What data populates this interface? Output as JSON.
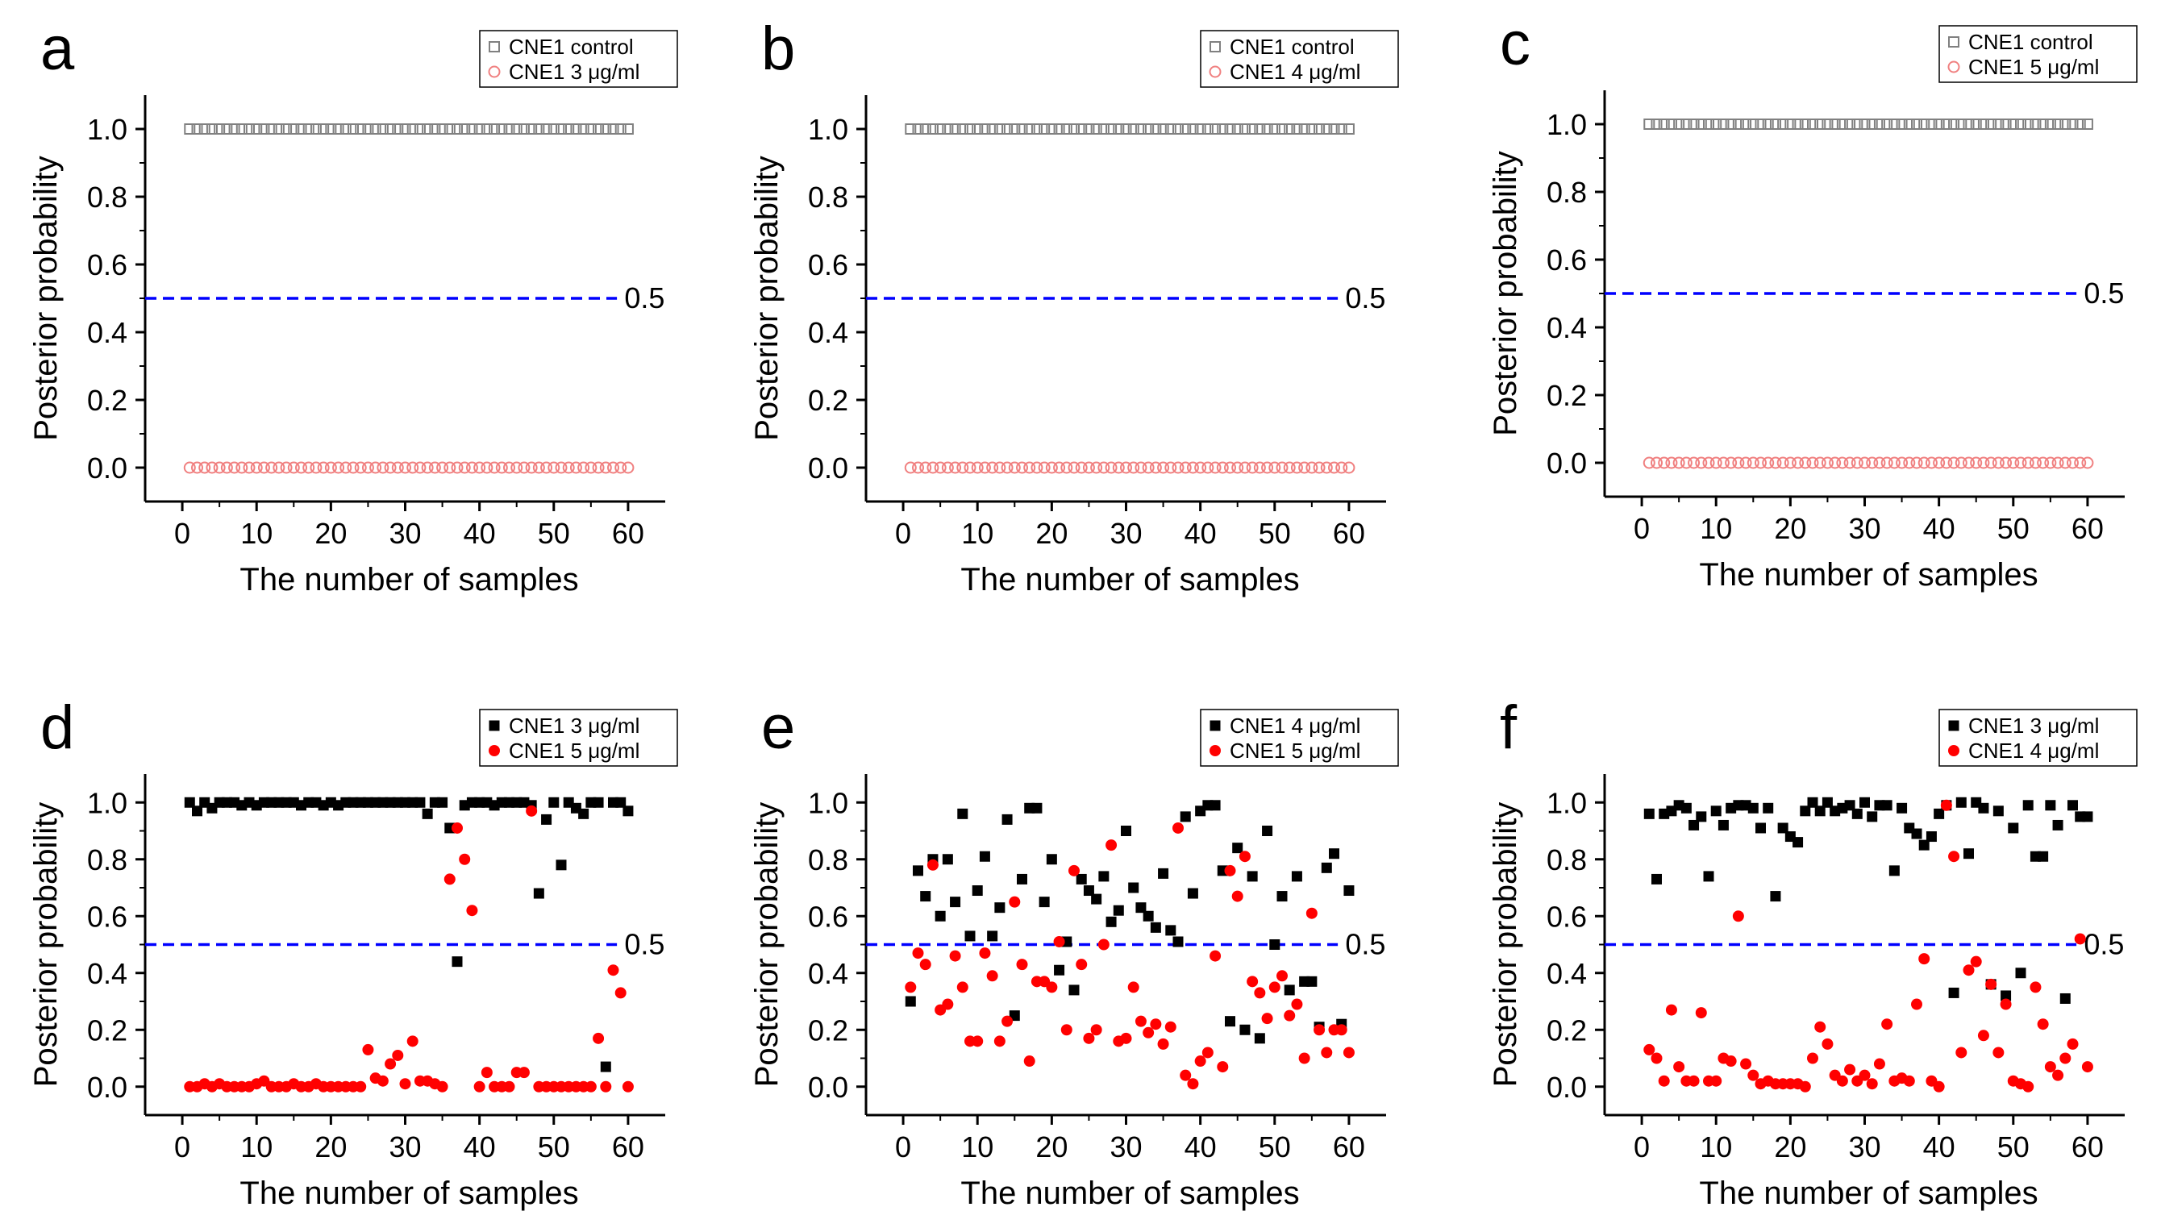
{
  "colors": {
    "control": "#808080",
    "treated_open": "#f08080",
    "black": "#000000",
    "red": "#ff0000",
    "threshold": "#0000ff"
  },
  "chart_data": [
    {
      "panel": "a",
      "type": "scatter",
      "xlabel": "The number of samples",
      "ylabel": "Posterior probability",
      "xlim": [
        -5,
        65
      ],
      "ylim": [
        -0.1,
        1.1
      ],
      "xticks": [
        0,
        10,
        20,
        30,
        40,
        50,
        60
      ],
      "xtick_labels": [
        "0",
        "10",
        "20",
        "30",
        "40",
        "50",
        "60"
      ],
      "yticks": [
        0,
        0.2,
        0.4,
        0.6,
        0.8,
        1.0
      ],
      "ytick_labels": [
        "0.0",
        "0.2",
        "0.4",
        "0.6",
        "0.8",
        "1.0"
      ],
      "threshold": 0.5,
      "threshold_label": "0.5",
      "legend_position": "top-right",
      "series": [
        {
          "name": "CNE1 control",
          "marker": "open-square",
          "color": "#808080",
          "x_start": 1,
          "x_end": 60,
          "constant_y": 1.0
        },
        {
          "name": "CNE1 3 μg/ml",
          "marker": "open-circle",
          "color": "#f08080",
          "x_start": 1,
          "x_end": 60,
          "constant_y": 0.0
        }
      ]
    },
    {
      "panel": "b",
      "type": "scatter",
      "xlabel": "The number of samples",
      "ylabel": "Posterior probability",
      "xlim": [
        -5,
        65
      ],
      "ylim": [
        -0.1,
        1.1
      ],
      "xticks": [
        0,
        10,
        20,
        30,
        40,
        50,
        60
      ],
      "xtick_labels": [
        "0",
        "10",
        "20",
        "30",
        "40",
        "50",
        "60"
      ],
      "yticks": [
        0,
        0.2,
        0.4,
        0.6,
        0.8,
        1.0
      ],
      "ytick_labels": [
        "0.0",
        "0.2",
        "0.4",
        "0.6",
        "0.8",
        "1.0"
      ],
      "threshold": 0.5,
      "threshold_label": "0.5",
      "legend_position": "top-right",
      "series": [
        {
          "name": "CNE1 control",
          "marker": "open-square",
          "color": "#808080",
          "x_start": 1,
          "x_end": 60,
          "constant_y": 1.0
        },
        {
          "name": "CNE1 4 μg/ml",
          "marker": "open-circle",
          "color": "#f08080",
          "x_start": 1,
          "x_end": 60,
          "constant_y": 0.0
        }
      ]
    },
    {
      "panel": "c",
      "type": "scatter",
      "xlabel": "The number of samples",
      "ylabel": "Posterior probability",
      "xlim": [
        -5,
        65
      ],
      "ylim": [
        -0.1,
        1.1
      ],
      "xticks": [
        0,
        10,
        20,
        30,
        40,
        50,
        60
      ],
      "xtick_labels": [
        "0",
        "10",
        "20",
        "30",
        "40",
        "50",
        "60"
      ],
      "yticks": [
        0,
        0.2,
        0.4,
        0.6,
        0.8,
        1.0
      ],
      "ytick_labels": [
        "0.0",
        "0.2",
        "0.4",
        "0.6",
        "0.8",
        "1.0"
      ],
      "threshold": 0.5,
      "threshold_label": "0.5",
      "legend_position": "top-right",
      "series": [
        {
          "name": "CNE1 control",
          "marker": "open-square",
          "color": "#808080",
          "x_start": 1,
          "x_end": 60,
          "constant_y": 1.0
        },
        {
          "name": "CNE1 5 μg/ml",
          "marker": "open-circle",
          "color": "#f08080",
          "x_start": 1,
          "x_end": 60,
          "constant_y": 0.0
        }
      ]
    },
    {
      "panel": "d",
      "type": "scatter",
      "xlabel": "The number of samples",
      "ylabel": "Posterior probability",
      "xlim": [
        -5,
        65
      ],
      "ylim": [
        -0.1,
        1.1
      ],
      "xticks": [
        0,
        10,
        20,
        30,
        40,
        50,
        60
      ],
      "xtick_labels": [
        "0",
        "10",
        "20",
        "30",
        "40",
        "50",
        "60"
      ],
      "yticks": [
        0,
        0.2,
        0.4,
        0.6,
        0.8,
        1.0
      ],
      "ytick_labels": [
        "0.0",
        "0.2",
        "0.4",
        "0.6",
        "0.8",
        "1.0"
      ],
      "threshold": 0.5,
      "threshold_label": "0.5",
      "legend_position": "top-right",
      "series": [
        {
          "name": "CNE1 3 μg/ml",
          "marker": "filled-square",
          "color": "#000000",
          "x": [
            1,
            2,
            3,
            4,
            5,
            6,
            7,
            8,
            9,
            10,
            11,
            12,
            13,
            14,
            15,
            16,
            17,
            18,
            19,
            20,
            21,
            22,
            23,
            24,
            25,
            26,
            27,
            28,
            29,
            30,
            31,
            32,
            33,
            34,
            35,
            36,
            37,
            38,
            39,
            40,
            41,
            42,
            43,
            44,
            45,
            46,
            47,
            48,
            49,
            50,
            51,
            52,
            53,
            54,
            55,
            56,
            57,
            58,
            59,
            60
          ],
          "y": [
            1.0,
            0.97,
            1.0,
            0.98,
            1.0,
            1.0,
            1.0,
            0.99,
            1.0,
            0.99,
            1.0,
            1.0,
            1.0,
            1.0,
            1.0,
            0.99,
            1.0,
            1.0,
            0.99,
            1.0,
            0.99,
            1.0,
            1.0,
            1.0,
            1.0,
            1.0,
            1.0,
            1.0,
            1.0,
            1.0,
            1.0,
            1.0,
            0.96,
            1.0,
            1.0,
            0.91,
            0.44,
            0.99,
            1.0,
            1.0,
            1.0,
            0.99,
            1.0,
            1.0,
            1.0,
            1.0,
            0.99,
            0.68,
            0.94,
            1.0,
            0.78,
            1.0,
            0.98,
            0.96,
            1.0,
            1.0,
            0.07,
            1.0,
            1.0,
            0.97
          ]
        },
        {
          "name": "CNE1 5 μg/ml",
          "marker": "filled-circle",
          "color": "#ff0000",
          "x": [
            1,
            2,
            3,
            4,
            5,
            6,
            7,
            8,
            9,
            10,
            11,
            12,
            13,
            14,
            15,
            16,
            17,
            18,
            19,
            20,
            21,
            22,
            23,
            24,
            25,
            26,
            27,
            28,
            29,
            30,
            31,
            32,
            33,
            34,
            35,
            36,
            37,
            38,
            39,
            40,
            41,
            42,
            43,
            44,
            45,
            46,
            47,
            48,
            49,
            50,
            51,
            52,
            53,
            54,
            55,
            56,
            57,
            58,
            59,
            60
          ],
          "y": [
            0.0,
            0.0,
            0.01,
            0.0,
            0.01,
            0.0,
            0.0,
            0.0,
            0.0,
            0.01,
            0.02,
            0.0,
            0.0,
            0.0,
            0.01,
            0.0,
            0.0,
            0.01,
            0.0,
            0.0,
            0.0,
            0.0,
            0.0,
            0.0,
            0.13,
            0.03,
            0.02,
            0.08,
            0.11,
            0.01,
            0.16,
            0.02,
            0.02,
            0.01,
            0.0,
            0.73,
            0.91,
            0.8,
            0.62,
            0.0,
            0.05,
            0.0,
            0.0,
            0.0,
            0.05,
            0.05,
            0.97,
            0.0,
            0.0,
            0.0,
            0.0,
            0.0,
            0.0,
            0.0,
            0.0,
            0.17,
            0.0,
            0.41,
            0.33,
            0.0
          ]
        }
      ]
    },
    {
      "panel": "e",
      "type": "scatter",
      "xlabel": "The number of samples",
      "ylabel": "Posterior probability",
      "xlim": [
        -5,
        65
      ],
      "ylim": [
        -0.1,
        1.1
      ],
      "xticks": [
        0,
        10,
        20,
        30,
        40,
        50,
        60
      ],
      "xtick_labels": [
        "0",
        "10",
        "20",
        "30",
        "40",
        "50",
        "60"
      ],
      "yticks": [
        0,
        0.2,
        0.4,
        0.6,
        0.8,
        1.0
      ],
      "ytick_labels": [
        "0.0",
        "0.2",
        "0.4",
        "0.6",
        "0.8",
        "1.0"
      ],
      "threshold": 0.5,
      "threshold_label": "0.5",
      "legend_position": "top-right",
      "series": [
        {
          "name": "CNE1 4 μg/ml",
          "marker": "filled-square",
          "color": "#000000",
          "x": [
            1,
            2,
            3,
            4,
            5,
            6,
            7,
            8,
            9,
            10,
            11,
            12,
            13,
            14,
            15,
            16,
            17,
            18,
            19,
            20,
            21,
            22,
            23,
            24,
            25,
            26,
            27,
            28,
            29,
            30,
            31,
            32,
            33,
            34,
            35,
            36,
            37,
            38,
            39,
            40,
            41,
            42,
            43,
            44,
            45,
            46,
            47,
            48,
            49,
            50,
            51,
            52,
            53,
            54,
            55,
            56,
            57,
            58,
            59,
            60
          ],
          "y": [
            0.3,
            0.76,
            0.67,
            0.8,
            0.6,
            0.8,
            0.65,
            0.96,
            0.53,
            0.69,
            0.81,
            0.53,
            0.63,
            0.94,
            0.25,
            0.73,
            0.98,
            0.98,
            0.65,
            0.8,
            0.41,
            0.51,
            0.34,
            0.73,
            0.69,
            0.66,
            0.74,
            0.58,
            0.62,
            0.9,
            0.7,
            0.63,
            0.6,
            0.56,
            0.75,
            0.55,
            0.51,
            0.95,
            0.68,
            0.97,
            0.99,
            0.99,
            0.76,
            0.23,
            0.84,
            0.2,
            0.74,
            0.17,
            0.9,
            0.5,
            0.67,
            0.34,
            0.74,
            0.37,
            0.37,
            0.21,
            0.77,
            0.82,
            0.22,
            0.69
          ]
        },
        {
          "name": "CNE1 5 μg/ml",
          "marker": "filled-circle",
          "color": "#ff0000",
          "x": [
            1,
            2,
            3,
            4,
            5,
            6,
            7,
            8,
            9,
            10,
            11,
            12,
            13,
            14,
            15,
            16,
            17,
            18,
            19,
            20,
            21,
            22,
            23,
            24,
            25,
            26,
            27,
            28,
            29,
            30,
            31,
            32,
            33,
            34,
            35,
            36,
            37,
            38,
            39,
            40,
            41,
            42,
            43,
            44,
            45,
            46,
            47,
            48,
            49,
            50,
            51,
            52,
            53,
            54,
            55,
            56,
            57,
            58,
            59,
            60
          ],
          "y": [
            0.35,
            0.47,
            0.43,
            0.78,
            0.27,
            0.29,
            0.46,
            0.35,
            0.16,
            0.16,
            0.47,
            0.39,
            0.16,
            0.23,
            0.65,
            0.43,
            0.09,
            0.37,
            0.37,
            0.35,
            0.51,
            0.2,
            0.76,
            0.43,
            0.17,
            0.2,
            0.5,
            0.85,
            0.16,
            0.17,
            0.35,
            0.23,
            0.19,
            0.22,
            0.15,
            0.21,
            0.91,
            0.04,
            0.01,
            0.09,
            0.12,
            0.46,
            0.07,
            0.76,
            0.67,
            0.81,
            0.37,
            0.33,
            0.24,
            0.35,
            0.39,
            0.25,
            0.29,
            0.1,
            0.61,
            0.2,
            0.12,
            0.2,
            0.2,
            0.12
          ]
        }
      ]
    },
    {
      "panel": "f",
      "type": "scatter",
      "xlabel": "The number of samples",
      "ylabel": "Posterior probability",
      "xlim": [
        -5,
        65
      ],
      "ylim": [
        -0.1,
        1.1
      ],
      "xticks": [
        0,
        10,
        20,
        30,
        40,
        50,
        60
      ],
      "xtick_labels": [
        "0",
        "10",
        "20",
        "30",
        "40",
        "50",
        "60"
      ],
      "yticks": [
        0,
        0.2,
        0.4,
        0.6,
        0.8,
        1.0
      ],
      "ytick_labels": [
        "0.0",
        "0.2",
        "0.4",
        "0.6",
        "0.8",
        "1.0"
      ],
      "threshold": 0.5,
      "threshold_label": "0.5",
      "legend_position": "top-right",
      "series": [
        {
          "name": "CNE1 3 μg/ml",
          "marker": "filled-square",
          "color": "#000000",
          "x": [
            1,
            2,
            3,
            4,
            5,
            6,
            7,
            8,
            9,
            10,
            11,
            12,
            13,
            14,
            15,
            16,
            17,
            18,
            19,
            20,
            21,
            22,
            23,
            24,
            25,
            26,
            27,
            28,
            29,
            30,
            31,
            32,
            33,
            34,
            35,
            36,
            37,
            38,
            39,
            40,
            41,
            42,
            43,
            44,
            45,
            46,
            47,
            48,
            49,
            50,
            51,
            52,
            53,
            54,
            55,
            56,
            57,
            58,
            59,
            60
          ],
          "y": [
            0.96,
            0.73,
            0.96,
            0.97,
            0.99,
            0.98,
            0.92,
            0.95,
            0.74,
            0.97,
            0.92,
            0.98,
            0.99,
            0.99,
            0.98,
            0.91,
            0.98,
            0.67,
            0.91,
            0.88,
            0.86,
            0.97,
            1.0,
            0.97,
            1.0,
            0.97,
            0.98,
            0.99,
            0.96,
            1.0,
            0.95,
            0.99,
            0.99,
            0.76,
            0.98,
            0.91,
            0.89,
            0.85,
            0.88,
            0.96,
            0.99,
            0.33,
            1.0,
            0.82,
            1.0,
            0.98,
            0.36,
            0.97,
            0.32,
            0.91,
            0.4,
            0.99,
            0.81,
            0.81,
            0.99,
            0.92,
            0.31,
            0.99,
            0.95,
            0.95
          ]
        },
        {
          "name": "CNE1 4 μg/ml",
          "marker": "filled-circle",
          "color": "#ff0000",
          "x": [
            1,
            2,
            3,
            4,
            5,
            6,
            7,
            8,
            9,
            10,
            11,
            12,
            13,
            14,
            15,
            16,
            17,
            18,
            19,
            20,
            21,
            22,
            23,
            24,
            25,
            26,
            27,
            28,
            29,
            30,
            31,
            32,
            33,
            34,
            35,
            36,
            37,
            38,
            39,
            40,
            41,
            42,
            43,
            44,
            45,
            46,
            47,
            48,
            49,
            50,
            51,
            52,
            53,
            54,
            55,
            56,
            57,
            58,
            59,
            60
          ],
          "y": [
            0.13,
            0.1,
            0.02,
            0.27,
            0.07,
            0.02,
            0.02,
            0.26,
            0.02,
            0.02,
            0.1,
            0.09,
            0.6,
            0.08,
            0.04,
            0.01,
            0.02,
            0.01,
            0.01,
            0.01,
            0.01,
            0.0,
            0.1,
            0.21,
            0.15,
            0.04,
            0.02,
            0.06,
            0.02,
            0.04,
            0.01,
            0.08,
            0.22,
            0.02,
            0.03,
            0.02,
            0.29,
            0.45,
            0.02,
            0.0,
            0.99,
            0.81,
            0.12,
            0.41,
            0.44,
            0.18,
            0.36,
            0.12,
            0.29,
            0.02,
            0.01,
            0.0,
            0.35,
            0.22,
            0.07,
            0.04,
            0.1,
            0.15,
            0.52,
            0.07
          ]
        }
      ]
    }
  ]
}
